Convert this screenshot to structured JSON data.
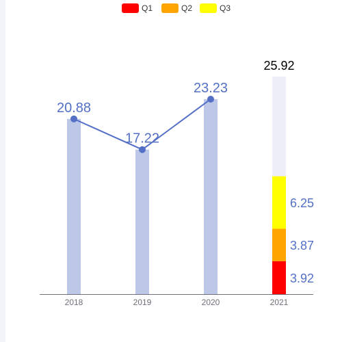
{
  "chart_data": {
    "type": "bar",
    "categories": [
      "2018",
      "2019",
      "2020",
      "2021"
    ],
    "series": [
      {
        "name": "",
        "kind": "bar",
        "values": [
          20.88,
          17.22,
          23.23,
          null
        ]
      },
      {
        "name": "",
        "kind": "line",
        "values": [
          20.88,
          17.22,
          23.23,
          null
        ]
      },
      {
        "name": "Q1",
        "kind": "stack",
        "values": [
          null,
          null,
          null,
          3.92
        ]
      },
      {
        "name": "Q2",
        "kind": "stack",
        "values": [
          null,
          null,
          null,
          3.87
        ]
      },
      {
        "name": "Q3",
        "kind": "stack",
        "values": [
          null,
          null,
          null,
          6.25
        ]
      }
    ],
    "total_2021": 25.92,
    "value_labels": [
      "20.88",
      "17.22",
      "23.23"
    ],
    "stack_labels": [
      "3.92",
      "3.87",
      "6.25"
    ],
    "total_label": "25.92",
    "legend": {
      "placement": "top-center",
      "items": [
        "Q1",
        "Q2",
        "Q3"
      ]
    },
    "ylim": [
      0,
      26
    ],
    "grid": false,
    "colors": {
      "bar": "#bdc7e8",
      "line": "#5470c6",
      "total_bg": "#eef0f9",
      "Q1": "#ff0000",
      "Q2": "#ffa500",
      "Q3": "#ffff00",
      "axis": "#6e7079",
      "total_text": "#000000"
    }
  }
}
